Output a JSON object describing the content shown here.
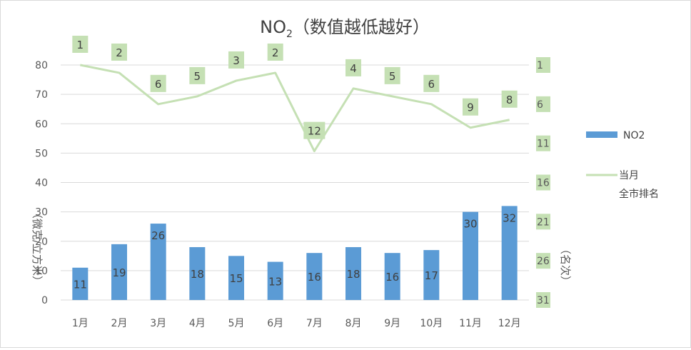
{
  "chart_data": {
    "type": "bar+line",
    "title": {
      "main": "NO",
      "sub": "2",
      "rest": "（数值越低越好）"
    },
    "categories": [
      "1月",
      "2月",
      "3月",
      "4月",
      "5月",
      "6月",
      "7月",
      "8月",
      "9月",
      "10月",
      "11月",
      "12月"
    ],
    "left_axis": {
      "title": "（微克/立方米）",
      "range": [
        0,
        80
      ],
      "ticks": [
        "0",
        "10",
        "20",
        "30",
        "40",
        "50",
        "60",
        "70",
        "80"
      ]
    },
    "right_axis": {
      "title": "（名次）",
      "range_top_to_bottom": [
        1,
        31
      ],
      "ticks": [
        "1",
        "6",
        "11",
        "16",
        "21",
        "26",
        "31"
      ]
    },
    "series": [
      {
        "name": "NO2",
        "type": "bar",
        "axis": "left",
        "color": "#5b9bd5",
        "values": [
          11,
          19,
          26,
          18,
          15,
          13,
          16,
          18,
          16,
          17,
          30,
          32
        ],
        "labels": [
          "11",
          "19",
          "26",
          "18",
          "15",
          "13",
          "16",
          "18",
          "16",
          "17",
          "30",
          "32"
        ]
      },
      {
        "name": "当月\n全市排名",
        "type": "line",
        "axis": "right",
        "color": "#c5e0b4",
        "values": [
          1,
          2,
          6,
          5,
          3,
          2,
          12,
          4,
          5,
          6,
          9,
          8
        ],
        "labels": [
          "1",
          "2",
          "6",
          "5",
          "3",
          "2",
          "12",
          "4",
          "5",
          "6",
          "9",
          "8"
        ]
      }
    ],
    "legend": {
      "position": "right",
      "items": [
        {
          "label": "NO2",
          "kind": "bar",
          "color": "#5b9bd5"
        },
        {
          "label_line1": "当月",
          "label_line2": "全市排名",
          "kind": "line",
          "color": "#c5e0b4"
        }
      ]
    },
    "grid": true,
    "colors": {
      "grid": "#d9d9d9",
      "label_box": "#c5e0b4",
      "text": "#404040"
    }
  }
}
